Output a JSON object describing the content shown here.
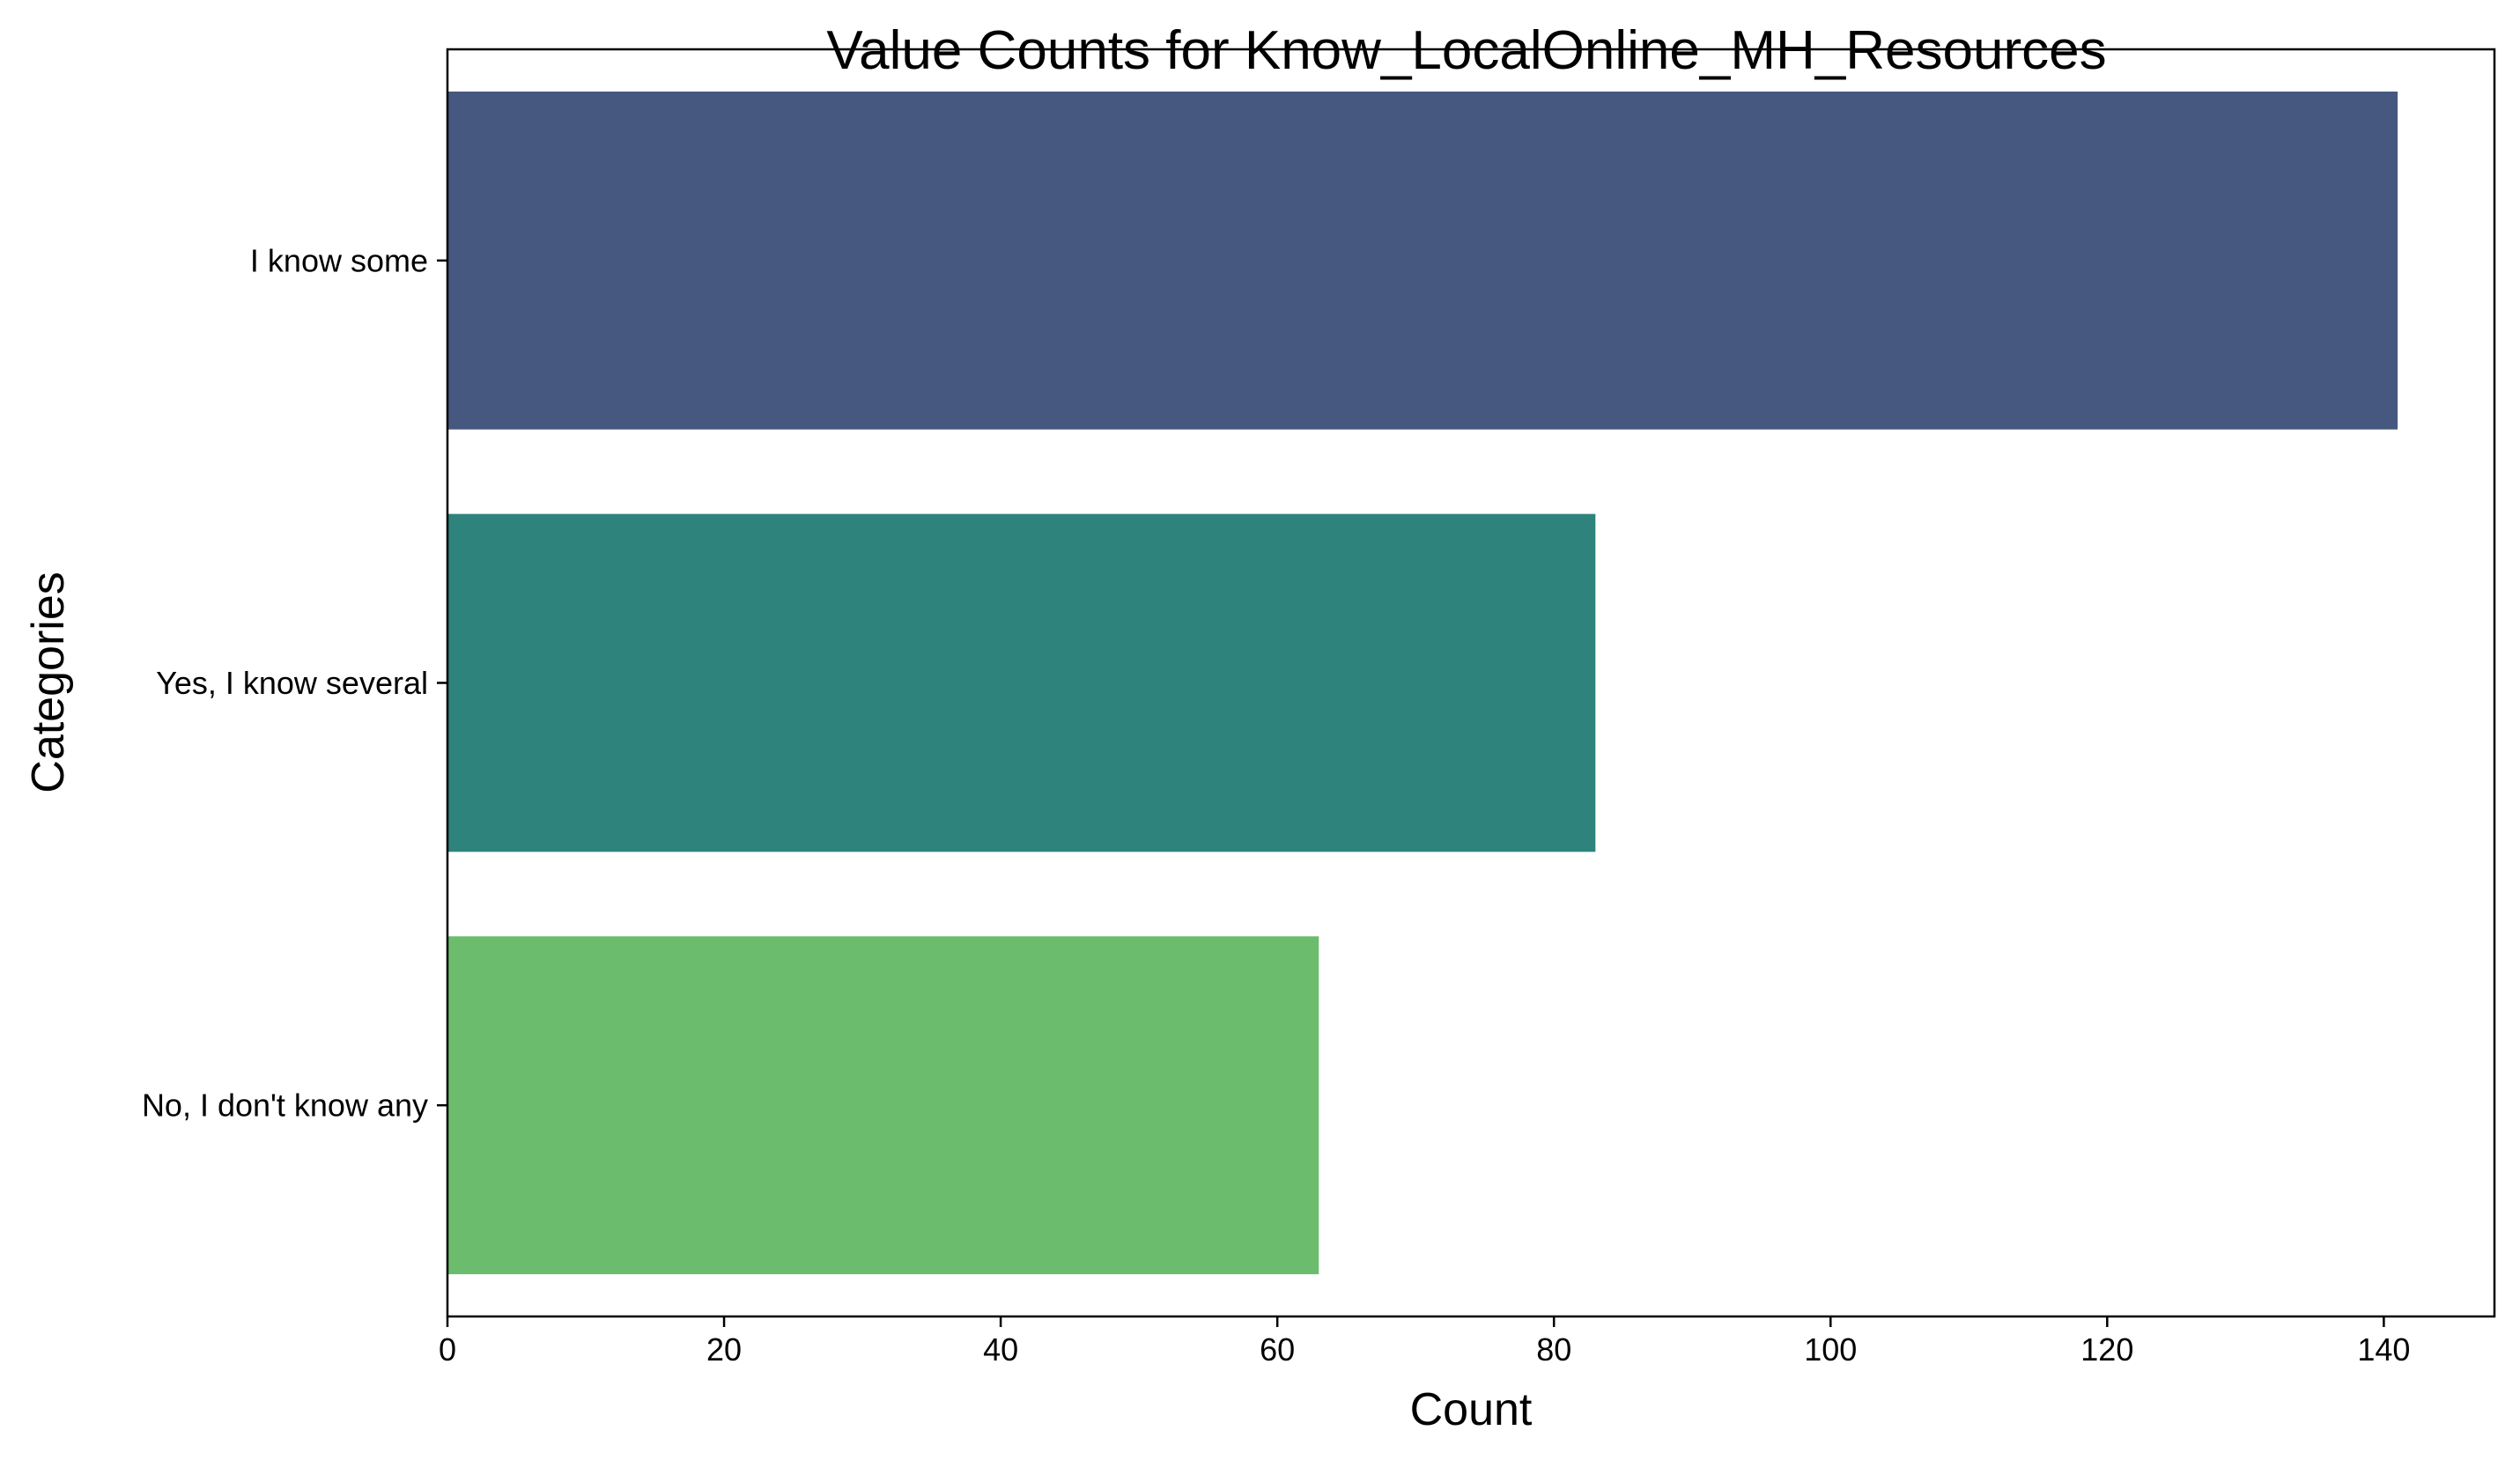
{
  "chart_data": {
    "type": "bar",
    "orientation": "horizontal",
    "title": "Value Counts for Know_LocalOnline_MH_Resources",
    "xlabel": "Count",
    "ylabel": "Categories",
    "categories": [
      "I know some",
      "Yes, I know several",
      "No, I don't know any"
    ],
    "values": [
      141,
      83,
      63
    ],
    "colors": [
      "#46587f",
      "#2e837c",
      "#6bbc6d"
    ],
    "xlim": [
      0,
      148
    ],
    "xticks": [
      0,
      20,
      40,
      60,
      80,
      100,
      120,
      140
    ],
    "grid": false,
    "legend": "none"
  }
}
